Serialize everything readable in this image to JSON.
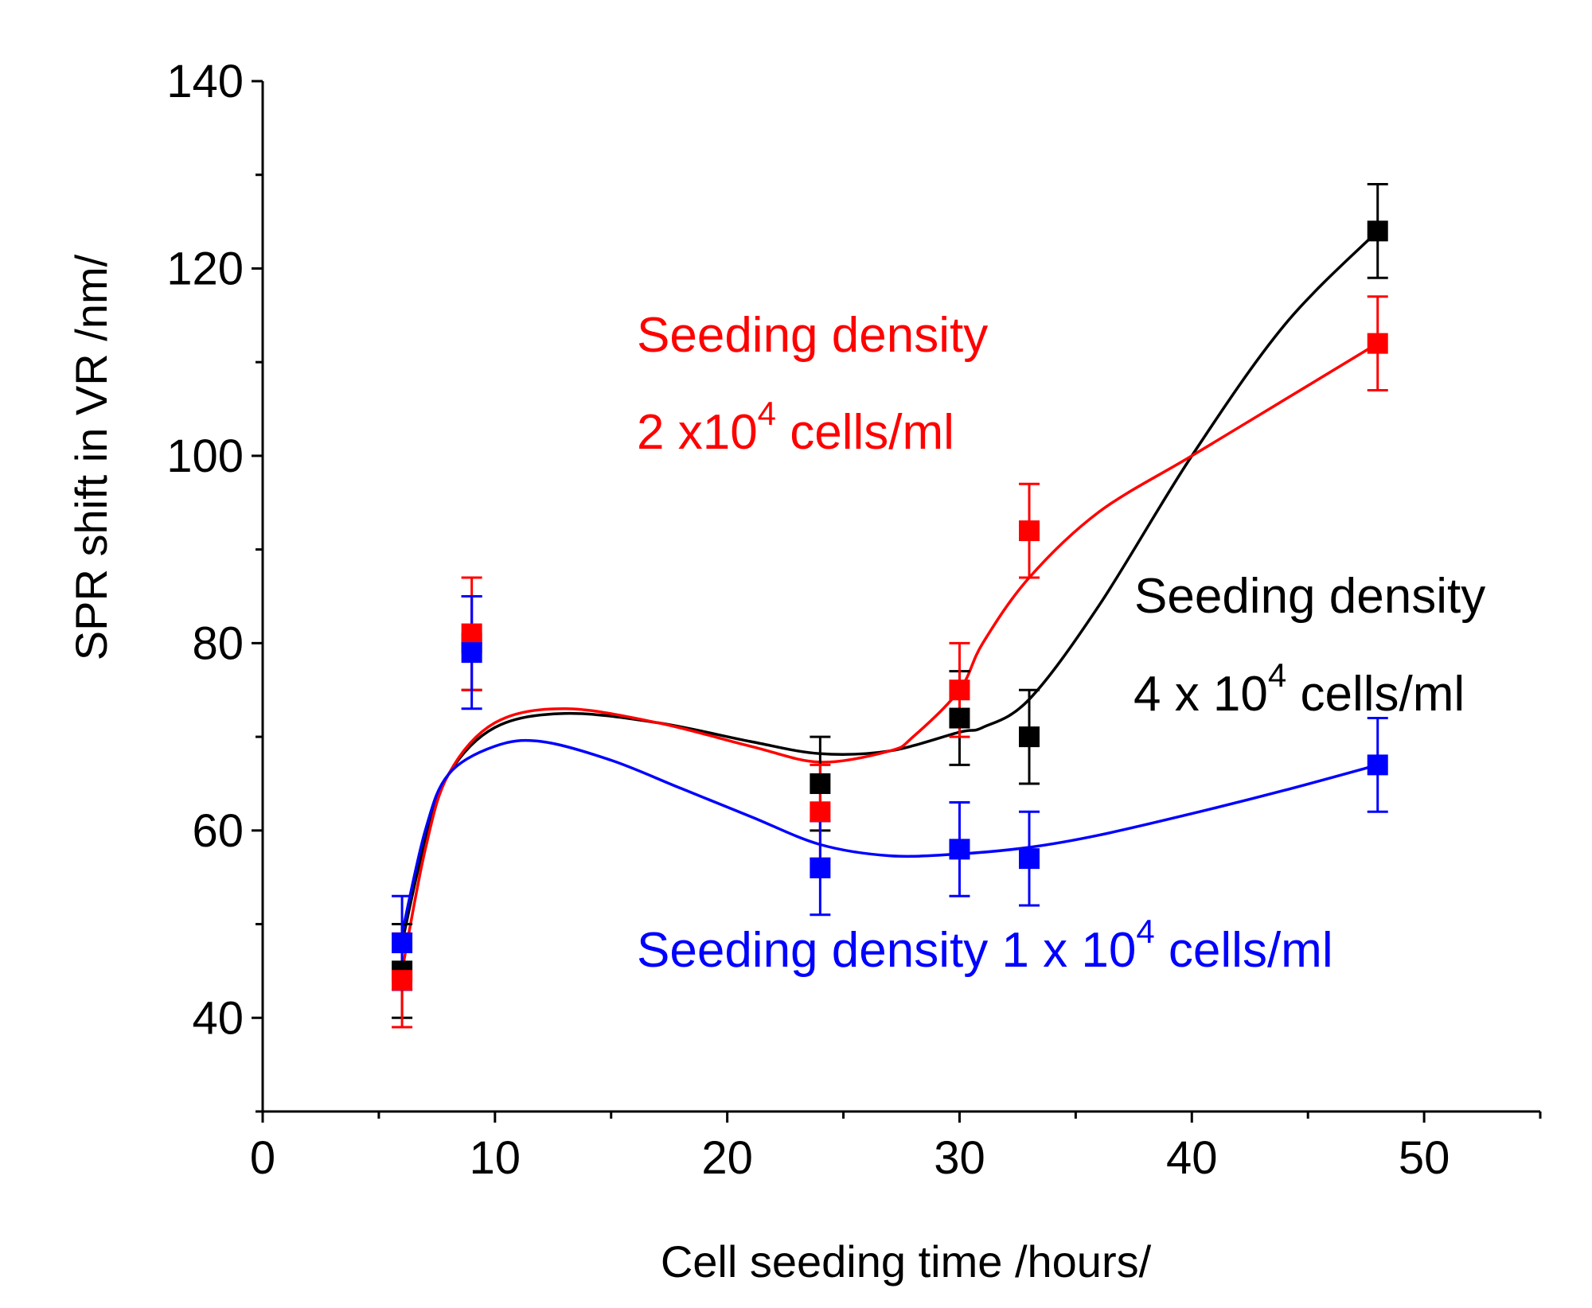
{
  "chart_data": {
    "type": "scatter",
    "title": "",
    "xlabel": "Cell seeding time /hours/",
    "ylabel": "SPR shift in VR /nm/",
    "xlim": [
      0,
      55
    ],
    "ylim": [
      30,
      140
    ],
    "x_ticks": [
      0,
      10,
      20,
      30,
      40,
      50
    ],
    "y_ticks": [
      40,
      60,
      80,
      100,
      120,
      140
    ],
    "x_tick_labels": [
      "0",
      "10",
      "20",
      "30",
      "40",
      "50"
    ],
    "y_tick_labels": [
      "40",
      "60",
      "80",
      "100",
      "120",
      "140"
    ],
    "grid": false,
    "series": [
      {
        "name": "Seeding density 4 x 10^4 cells/ml",
        "color": "#000000",
        "x": [
          6,
          9,
          24,
          30,
          33,
          48
        ],
        "y": [
          45,
          80,
          65,
          72,
          70,
          124
        ],
        "err": [
          5,
          5,
          5,
          5,
          5,
          5
        ],
        "fit_x": [
          6,
          7,
          8,
          10,
          13,
          17,
          21,
          24,
          27,
          30,
          31,
          33,
          36,
          40,
          44,
          48
        ],
        "fit_y": [
          48,
          59,
          66,
          71,
          72.5,
          71.5,
          69.5,
          68.2,
          68.5,
          70.5,
          71,
          74,
          84,
          100,
          114,
          124
        ]
      },
      {
        "name": "Seeding density 2 x10^4 cells/ml",
        "color": "#ff0000",
        "x": [
          6,
          9,
          24,
          30,
          33,
          48
        ],
        "y": [
          44,
          81,
          62,
          75,
          92,
          112
        ],
        "err": [
          5,
          6,
          5,
          5,
          5,
          5
        ],
        "fit_x": [
          6,
          7,
          8,
          10,
          13,
          17,
          21,
          24,
          27,
          28,
          30,
          31,
          33,
          36,
          40,
          44,
          48
        ],
        "fit_y": [
          45,
          58,
          66,
          71.5,
          73,
          71.5,
          69,
          67.3,
          68.5,
          70,
          75,
          80,
          87,
          94,
          100,
          106,
          112
        ]
      },
      {
        "name": "Seeding density 1 x 10^4 cells/ml",
        "color": "#0000ff",
        "x": [
          6,
          9,
          24,
          30,
          33,
          48
        ],
        "y": [
          48,
          79,
          56,
          58,
          57,
          67
        ],
        "err": [
          5,
          6,
          5,
          5,
          5,
          5
        ],
        "fit_x": [
          6,
          7,
          8,
          10,
          12,
          15,
          18,
          21,
          24,
          27,
          30,
          33,
          36,
          40,
          44,
          48
        ],
        "fit_y": [
          49,
          60,
          66,
          69,
          69.5,
          67.5,
          64.5,
          61.5,
          58.5,
          57.3,
          57.5,
          58.2,
          59.5,
          61.8,
          64.3,
          67
        ]
      }
    ],
    "annotations": {
      "red_line1": "Seeding density",
      "red_line2_pre": "2 x10",
      "red_line2_sup": "4",
      "red_line2_post": " cells/ml",
      "black_line1": "Seeding density",
      "black_line2_pre": "4 x 10",
      "black_line2_sup": "4",
      "black_line2_post": " cells/ml",
      "blue_pre": "Seeding density 1 x 10",
      "blue_sup": "4",
      "blue_post": "  cells/ml"
    }
  }
}
